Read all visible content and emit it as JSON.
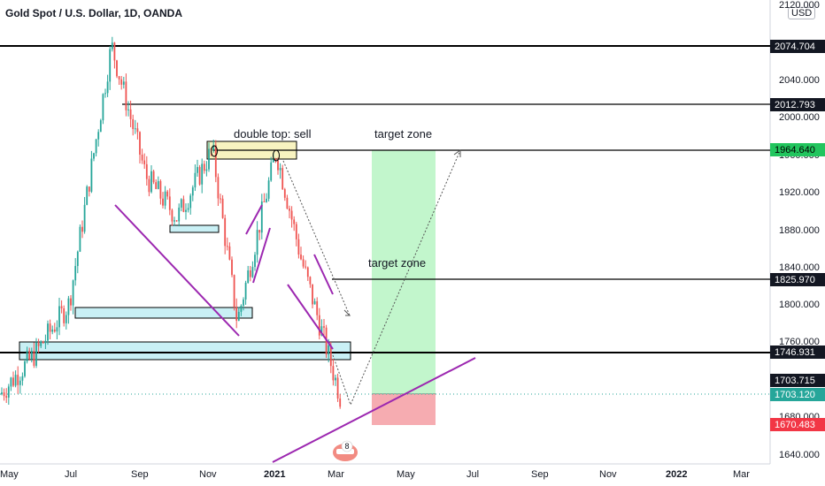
{
  "header": {
    "title": "Gold Spot / U.S. Dollar, 1D, OANDA",
    "currency": "USD"
  },
  "chart_data": {
    "type": "candlestick",
    "symbol": "Gold Spot / U.S. Dollar",
    "interval": "1D",
    "source": "OANDA",
    "ylim": [
      1620,
      2120
    ],
    "y_ticks": [
      "2120.000",
      "2080.000",
      "2040.000",
      "2000.000",
      "1960.000",
      "1920.000",
      "1880.000",
      "1840.000",
      "1800.000",
      "1760.000",
      "1720.000",
      "1680.000",
      "1640.000"
    ],
    "x_ticks": [
      "May",
      "Jul",
      "Sep",
      "Nov",
      "2021",
      "Mar",
      "May",
      "Jul",
      "Sep",
      "Nov",
      "2022",
      "Mar"
    ],
    "price_path": [
      [
        "May",
        1690
      ],
      [
        "Jun",
        1735
      ],
      [
        "Jul",
        1790
      ],
      [
        "Aug",
        2074.704
      ],
      [
        "Sep",
        1930
      ],
      [
        "Oct",
        1885
      ],
      [
        "Nov",
        1960
      ],
      [
        "Dec",
        1770
      ],
      [
        "2021",
        1958
      ],
      [
        "Feb",
        1840
      ],
      [
        "Mar",
        1685
      ],
      [
        "Mar",
        1703.715
      ]
    ],
    "horizontal_lines": [
      {
        "price": "2074.704",
        "color": "#000000"
      },
      {
        "price": "2012.793",
        "color": "#000000"
      },
      {
        "price": "1964.640",
        "color": "#000000",
        "badge_color": "#22c55e"
      },
      {
        "price": "1825.970",
        "color": "#000000"
      },
      {
        "price": "1746.931",
        "color": "#000000"
      }
    ],
    "price_labels": [
      {
        "price": "1703.715",
        "badge_color": "#131722"
      },
      {
        "price": "1703.120",
        "badge_color": "#26a69a",
        "role": "current"
      },
      {
        "price": "1670.483",
        "badge_color": "#f23645"
      }
    ],
    "zones": [
      {
        "kind": "target-zone",
        "color": "#b7f5c3",
        "from": 1703.12,
        "to": 1964.64
      },
      {
        "kind": "stop-zone",
        "color": "#f5a3a8",
        "from": 1670.483,
        "to": 1703.12
      },
      {
        "kind": "double-top-box",
        "color": "#f8f3c0",
        "from": 1956,
        "to": 1976
      },
      {
        "kind": "support-box",
        "color": "#c9f0f5",
        "from": 1876,
        "to": 1884
      },
      {
        "kind": "support-box",
        "color": "#c9f0f5",
        "from": 1783,
        "to": 1795
      },
      {
        "kind": "support-box",
        "color": "#c9f0f5",
        "from": 1740,
        "to": 1760
      }
    ],
    "annotations": [
      "double top: sell",
      "target zone",
      "target zone"
    ],
    "trendline_color": "#9c27b0",
    "event_badge": "8",
    "grid": false
  }
}
